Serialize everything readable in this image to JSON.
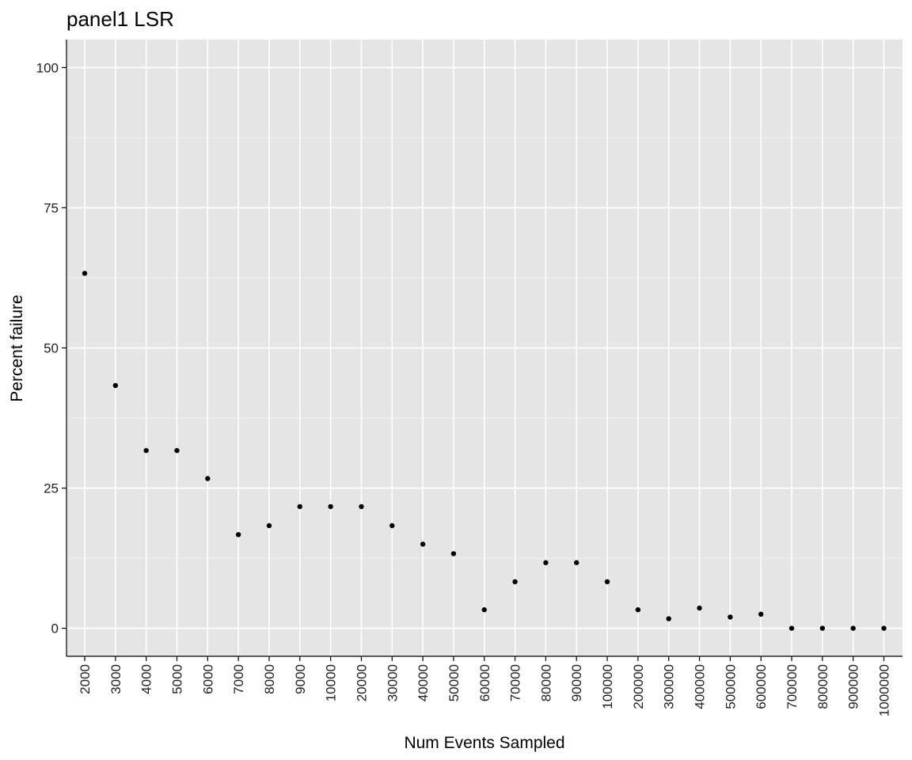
{
  "chart_data": {
    "type": "scatter",
    "title": "panel1 LSR",
    "xlabel": "Num Events Sampled",
    "ylabel": "Percent failure",
    "ylim": [
      -5,
      105
    ],
    "yticks": [
      0,
      25,
      50,
      75,
      100
    ],
    "ytick_labels": [
      "0",
      "25",
      "50",
      "75",
      "100"
    ],
    "x_is_categorical": true,
    "categories": [
      "2000",
      "3000",
      "4000",
      "5000",
      "6000",
      "7000",
      "8000",
      "9000",
      "10000",
      "20000",
      "30000",
      "40000",
      "50000",
      "60000",
      "70000",
      "80000",
      "90000",
      "100000",
      "200000",
      "300000",
      "400000",
      "500000",
      "600000",
      "700000",
      "800000",
      "900000",
      "1000000"
    ],
    "values": [
      63.3,
      43.3,
      31.7,
      31.7,
      26.7,
      16.7,
      18.3,
      21.7,
      21.7,
      21.7,
      18.3,
      15.0,
      13.3,
      3.3,
      8.3,
      11.7,
      11.7,
      8.3,
      3.3,
      1.7,
      3.6,
      2.0,
      2.5,
      0,
      0,
      0,
      0
    ],
    "grid": true,
    "legend": "none",
    "colors": {
      "panel_background": "#e5e5e5",
      "grid_major": "#ffffff",
      "grid_minor": "#f2f2f2",
      "points": "#000000",
      "axis": "#000000"
    }
  }
}
